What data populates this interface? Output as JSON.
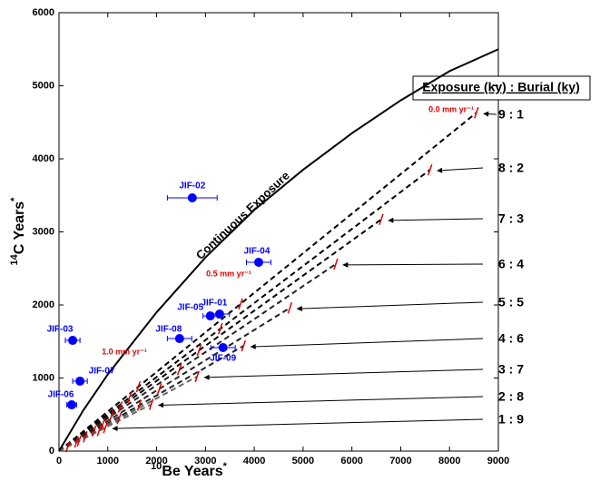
{
  "chart_data": {
    "type": "scatter",
    "xlabel": {
      "sup": "10",
      "text": "Be Years",
      "star": "*"
    },
    "ylabel": {
      "sup": "14",
      "text": "C Years",
      "star": "*"
    },
    "xlim": [
      0,
      9000
    ],
    "ylim": [
      0,
      6000
    ],
    "xticks": [
      0,
      1000,
      2000,
      3000,
      4000,
      5000,
      6000,
      7000,
      8000,
      9000
    ],
    "yticks": [
      0,
      1000,
      2000,
      3000,
      4000,
      5000,
      6000
    ],
    "continuous_exposure": {
      "name": "Continuous Exposure",
      "color": "#000000",
      "x": [
        0,
        500,
        1000,
        2000,
        3000,
        4000,
        5000,
        6000,
        7000,
        8000,
        9000
      ],
      "y": [
        0,
        560,
        1050,
        1900,
        2650,
        3300,
        3850,
        4350,
        4800,
        5200,
        5500
      ]
    },
    "legend_title": "Exposure (ky) : Burial (ky)",
    "burial_lines": [
      {
        "label": "9 : 1",
        "x": [
          0,
          8550
        ],
        "y": [
          0,
          4630
        ]
      },
      {
        "label": "8 : 2",
        "x": [
          0,
          7600
        ],
        "y": [
          0,
          3850
        ]
      },
      {
        "label": "7 : 3",
        "x": [
          0,
          6600
        ],
        "y": [
          0,
          3170
        ]
      },
      {
        "label": "6 : 4",
        "x": [
          0,
          5670
        ],
        "y": [
          0,
          2560
        ]
      },
      {
        "label": "5 : 5",
        "x": [
          0,
          4730
        ],
        "y": [
          0,
          1960
        ]
      },
      {
        "label": "4 : 6",
        "x": [
          0,
          3780
        ],
        "y": [
          0,
          1440
        ]
      },
      {
        "label": "3 : 7",
        "x": [
          0,
          2830
        ],
        "y": [
          0,
          1020
        ]
      },
      {
        "label": "2 : 8",
        "x": [
          0,
          1890
        ],
        "y": [
          0,
          640
        ]
      },
      {
        "label": "1 : 9",
        "x": [
          0,
          950
        ],
        "y": [
          0,
          320
        ]
      }
    ],
    "erosion_ticks": {
      "color": "#e00000",
      "x": [
        3720,
        1625,
        3306,
        1444,
        2871,
        1254,
        2466,
        1077,
        2058,
        899,
        1644,
        718,
        1231,
        538,
        822,
        359,
        413,
        181
      ],
      "y": [
        2014,
        880,
        1675,
        732,
        1379,
        602,
        1114,
        486,
        853,
        372,
        626,
        274,
        444,
        194,
        278,
        122,
        139,
        61
      ]
    },
    "erosion_labels": [
      "0.0 mm yr⁻¹",
      "0.5 mm yr⁻¹",
      "1.0 mm yr⁻¹"
    ],
    "samples": {
      "color": "#0000ff",
      "names": [
        "JIF-02",
        "JIF-04",
        "JIF-01",
        "JIF-05",
        "JIF-08",
        "JIF-09",
        "JIF-03",
        "JIF-07",
        "JIF-06"
      ],
      "x": [
        2730,
        4090,
        3290,
        3100,
        2470,
        3360,
        280,
        430,
        260
      ],
      "y": [
        3466,
        2584,
        1876,
        1850,
        1540,
        1416,
        1515,
        957,
        633
      ],
      "xerr": [
        510,
        250,
        200,
        150,
        250,
        250,
        150,
        150,
        100
      ]
    }
  }
}
